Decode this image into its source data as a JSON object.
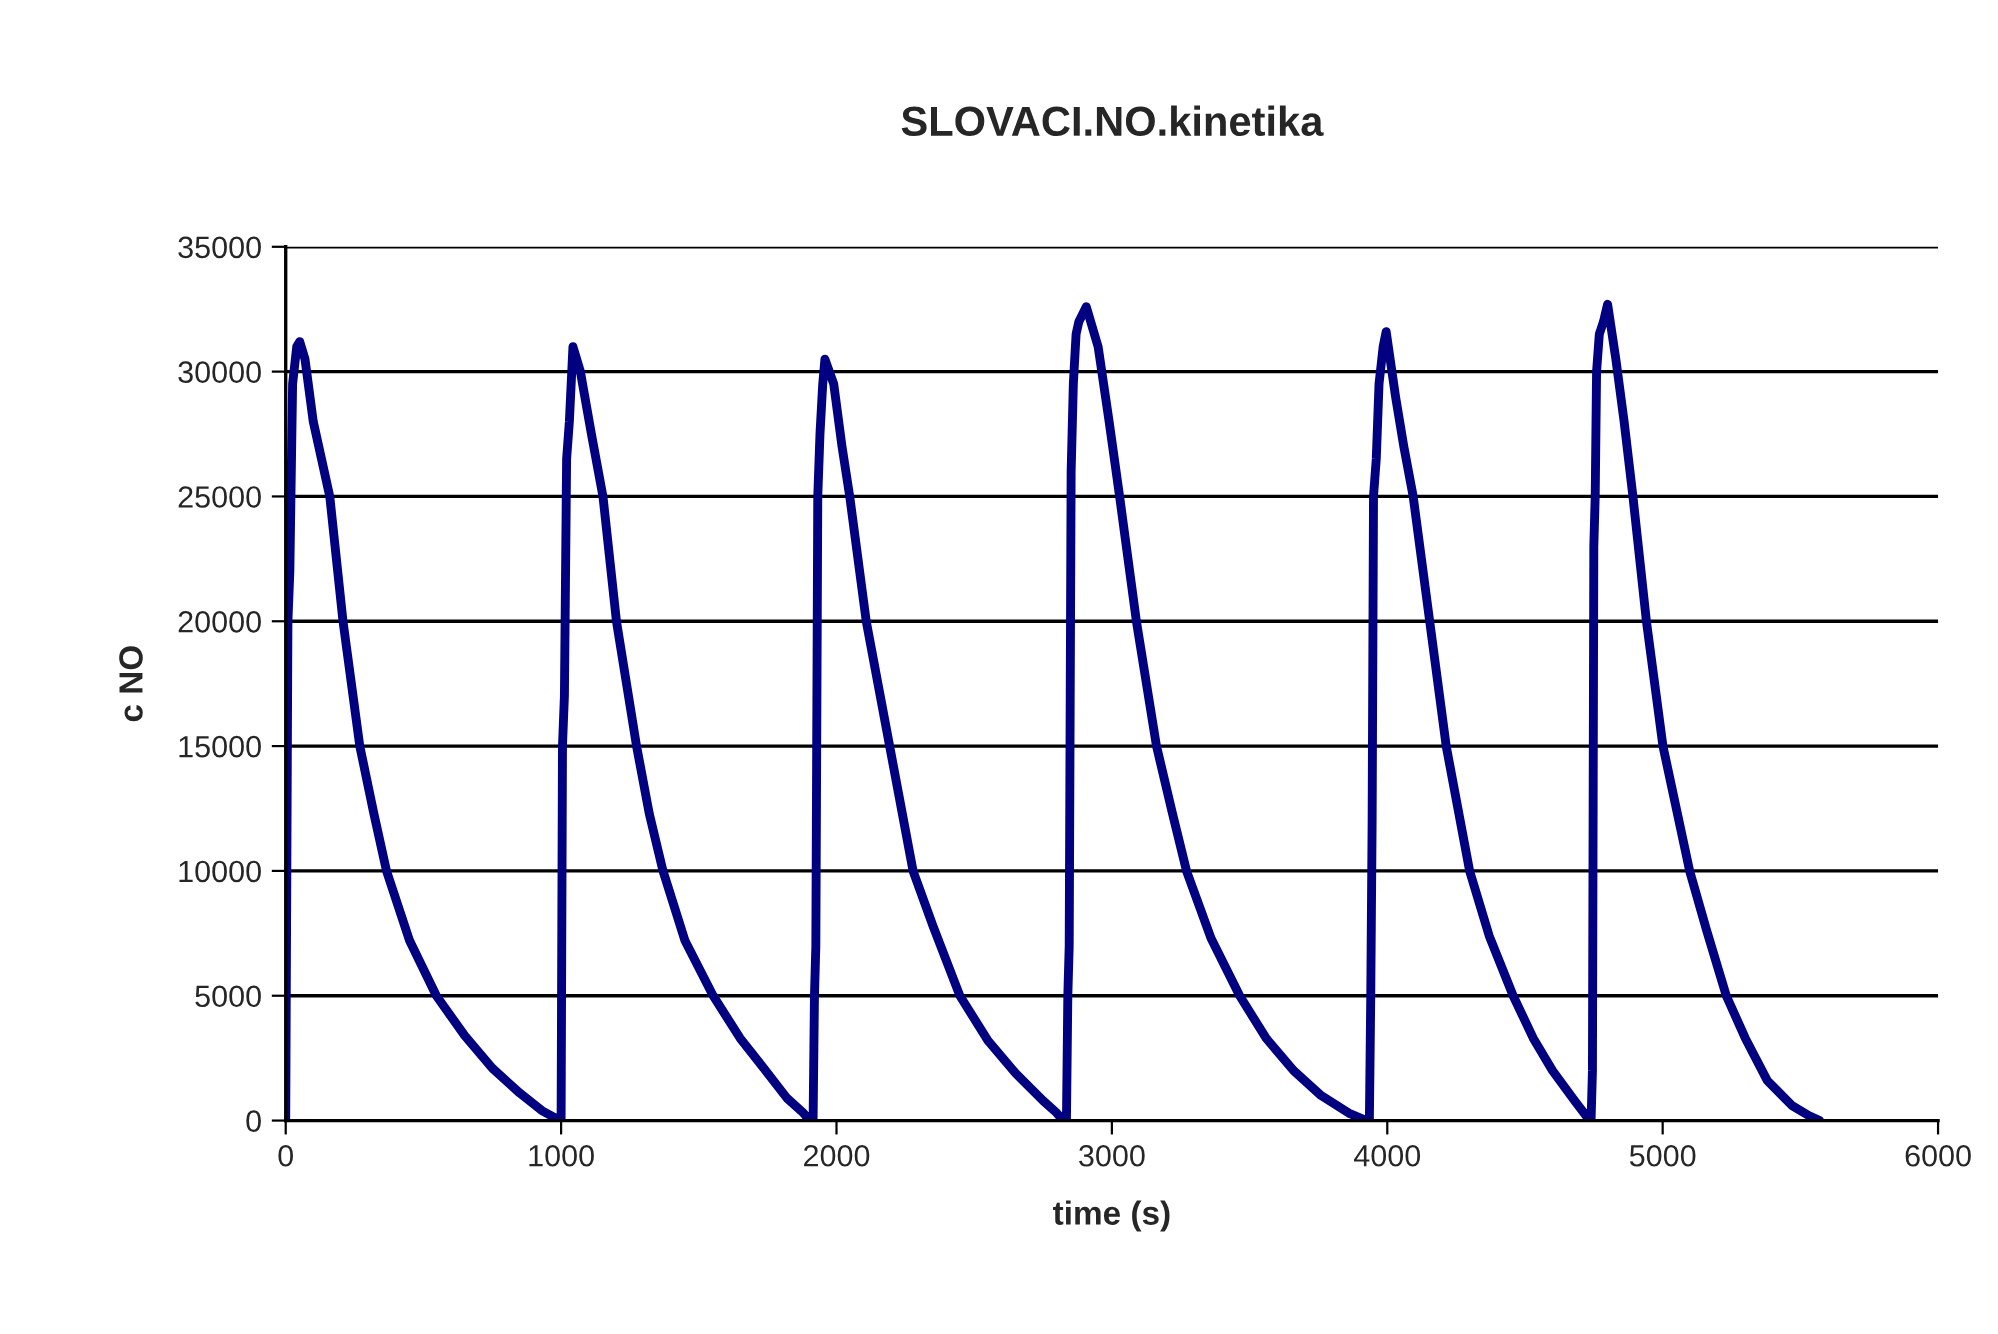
{
  "chart_data": {
    "type": "line",
    "title": "SLOVACI.NO.kinetika",
    "xlabel": "time (s)",
    "ylabel": "c NO",
    "xlim": [
      0,
      6000
    ],
    "xticks": [
      0,
      1000,
      2000,
      3000,
      4000,
      5000,
      6000
    ],
    "ylim": [
      0,
      35000
    ],
    "yticks": [
      0,
      5000,
      10000,
      15000,
      20000,
      25000,
      30000,
      35000
    ],
    "grid": "y",
    "legend": false,
    "marker": "none",
    "line_style": "solid",
    "series": [
      {
        "color": "#000080",
        "x": [
          0,
          8,
          15,
          25,
          40,
          51,
          70,
          100,
          130,
          160,
          208,
          269,
          320,
          366,
          450,
          547,
          650,
          750,
          850,
          930,
          980,
          990,
          1000,
          1005,
          1012,
          1020,
          1030,
          1043,
          1070,
          1110,
          1152,
          1201,
          1274,
          1320,
          1370,
          1450,
          1552,
          1650,
          1750,
          1820,
          1880,
          1903,
          1915,
          1920,
          1925,
          1932,
          1940,
          1950,
          1958,
          1990,
          2020,
          2048,
          2108,
          2193,
          2278,
          2350,
          2448,
          2550,
          2650,
          2750,
          2800,
          2823,
          2835,
          2840,
          2845,
          2852,
          2860,
          2870,
          2880,
          2907,
          2950,
          2990,
          3028,
          3089,
          3162,
          3220,
          3271,
          3360,
          3464,
          3560,
          3660,
          3760,
          3860,
          3924,
          3935,
          3940,
          3945,
          3950,
          3960,
          3970,
          3985,
          3996,
          4030,
          4060,
          4094,
          4154,
          4214,
          4299,
          4370,
          4457,
          4530,
          4600,
          4680,
          4735,
          4740,
          4745,
          4750,
          4755,
          4760,
          4770,
          4785,
          4800,
          4830,
          4860,
          4892,
          4941,
          5001,
          5098,
          5160,
          5231,
          5300,
          5380,
          5470,
          5530,
          5570
        ],
        "values": [
          0,
          20000,
          22000,
          29500,
          31000,
          31200,
          30500,
          28000,
          26500,
          25000,
          20000,
          15000,
          12300,
          10000,
          7200,
          5000,
          3400,
          2100,
          1100,
          400,
          100,
          0,
          0,
          15000,
          17000,
          26500,
          28000,
          31000,
          30000,
          27500,
          25000,
          20000,
          15000,
          12300,
          10000,
          7200,
          5000,
          3300,
          1900,
          900,
          300,
          0,
          0,
          5000,
          7000,
          25000,
          27500,
          29500,
          30500,
          29500,
          27000,
          25000,
          20000,
          15000,
          10000,
          7800,
          5000,
          3200,
          1900,
          800,
          300,
          0,
          0,
          5000,
          7000,
          26000,
          29500,
          31500,
          32000,
          32600,
          31000,
          28000,
          25000,
          20000,
          15000,
          12300,
          10000,
          7300,
          5000,
          3300,
          2000,
          1000,
          300,
          0,
          0,
          5000,
          12000,
          25000,
          26500,
          29500,
          31000,
          31600,
          29000,
          27000,
          25000,
          20000,
          15000,
          10000,
          7400,
          5000,
          3300,
          2000,
          800,
          0,
          0,
          2000,
          23000,
          25000,
          30000,
          31500,
          32000,
          32700,
          30500,
          28000,
          25000,
          20000,
          15000,
          10000,
          7600,
          5000,
          3300,
          1600,
          600,
          200,
          0
        ]
      }
    ]
  }
}
